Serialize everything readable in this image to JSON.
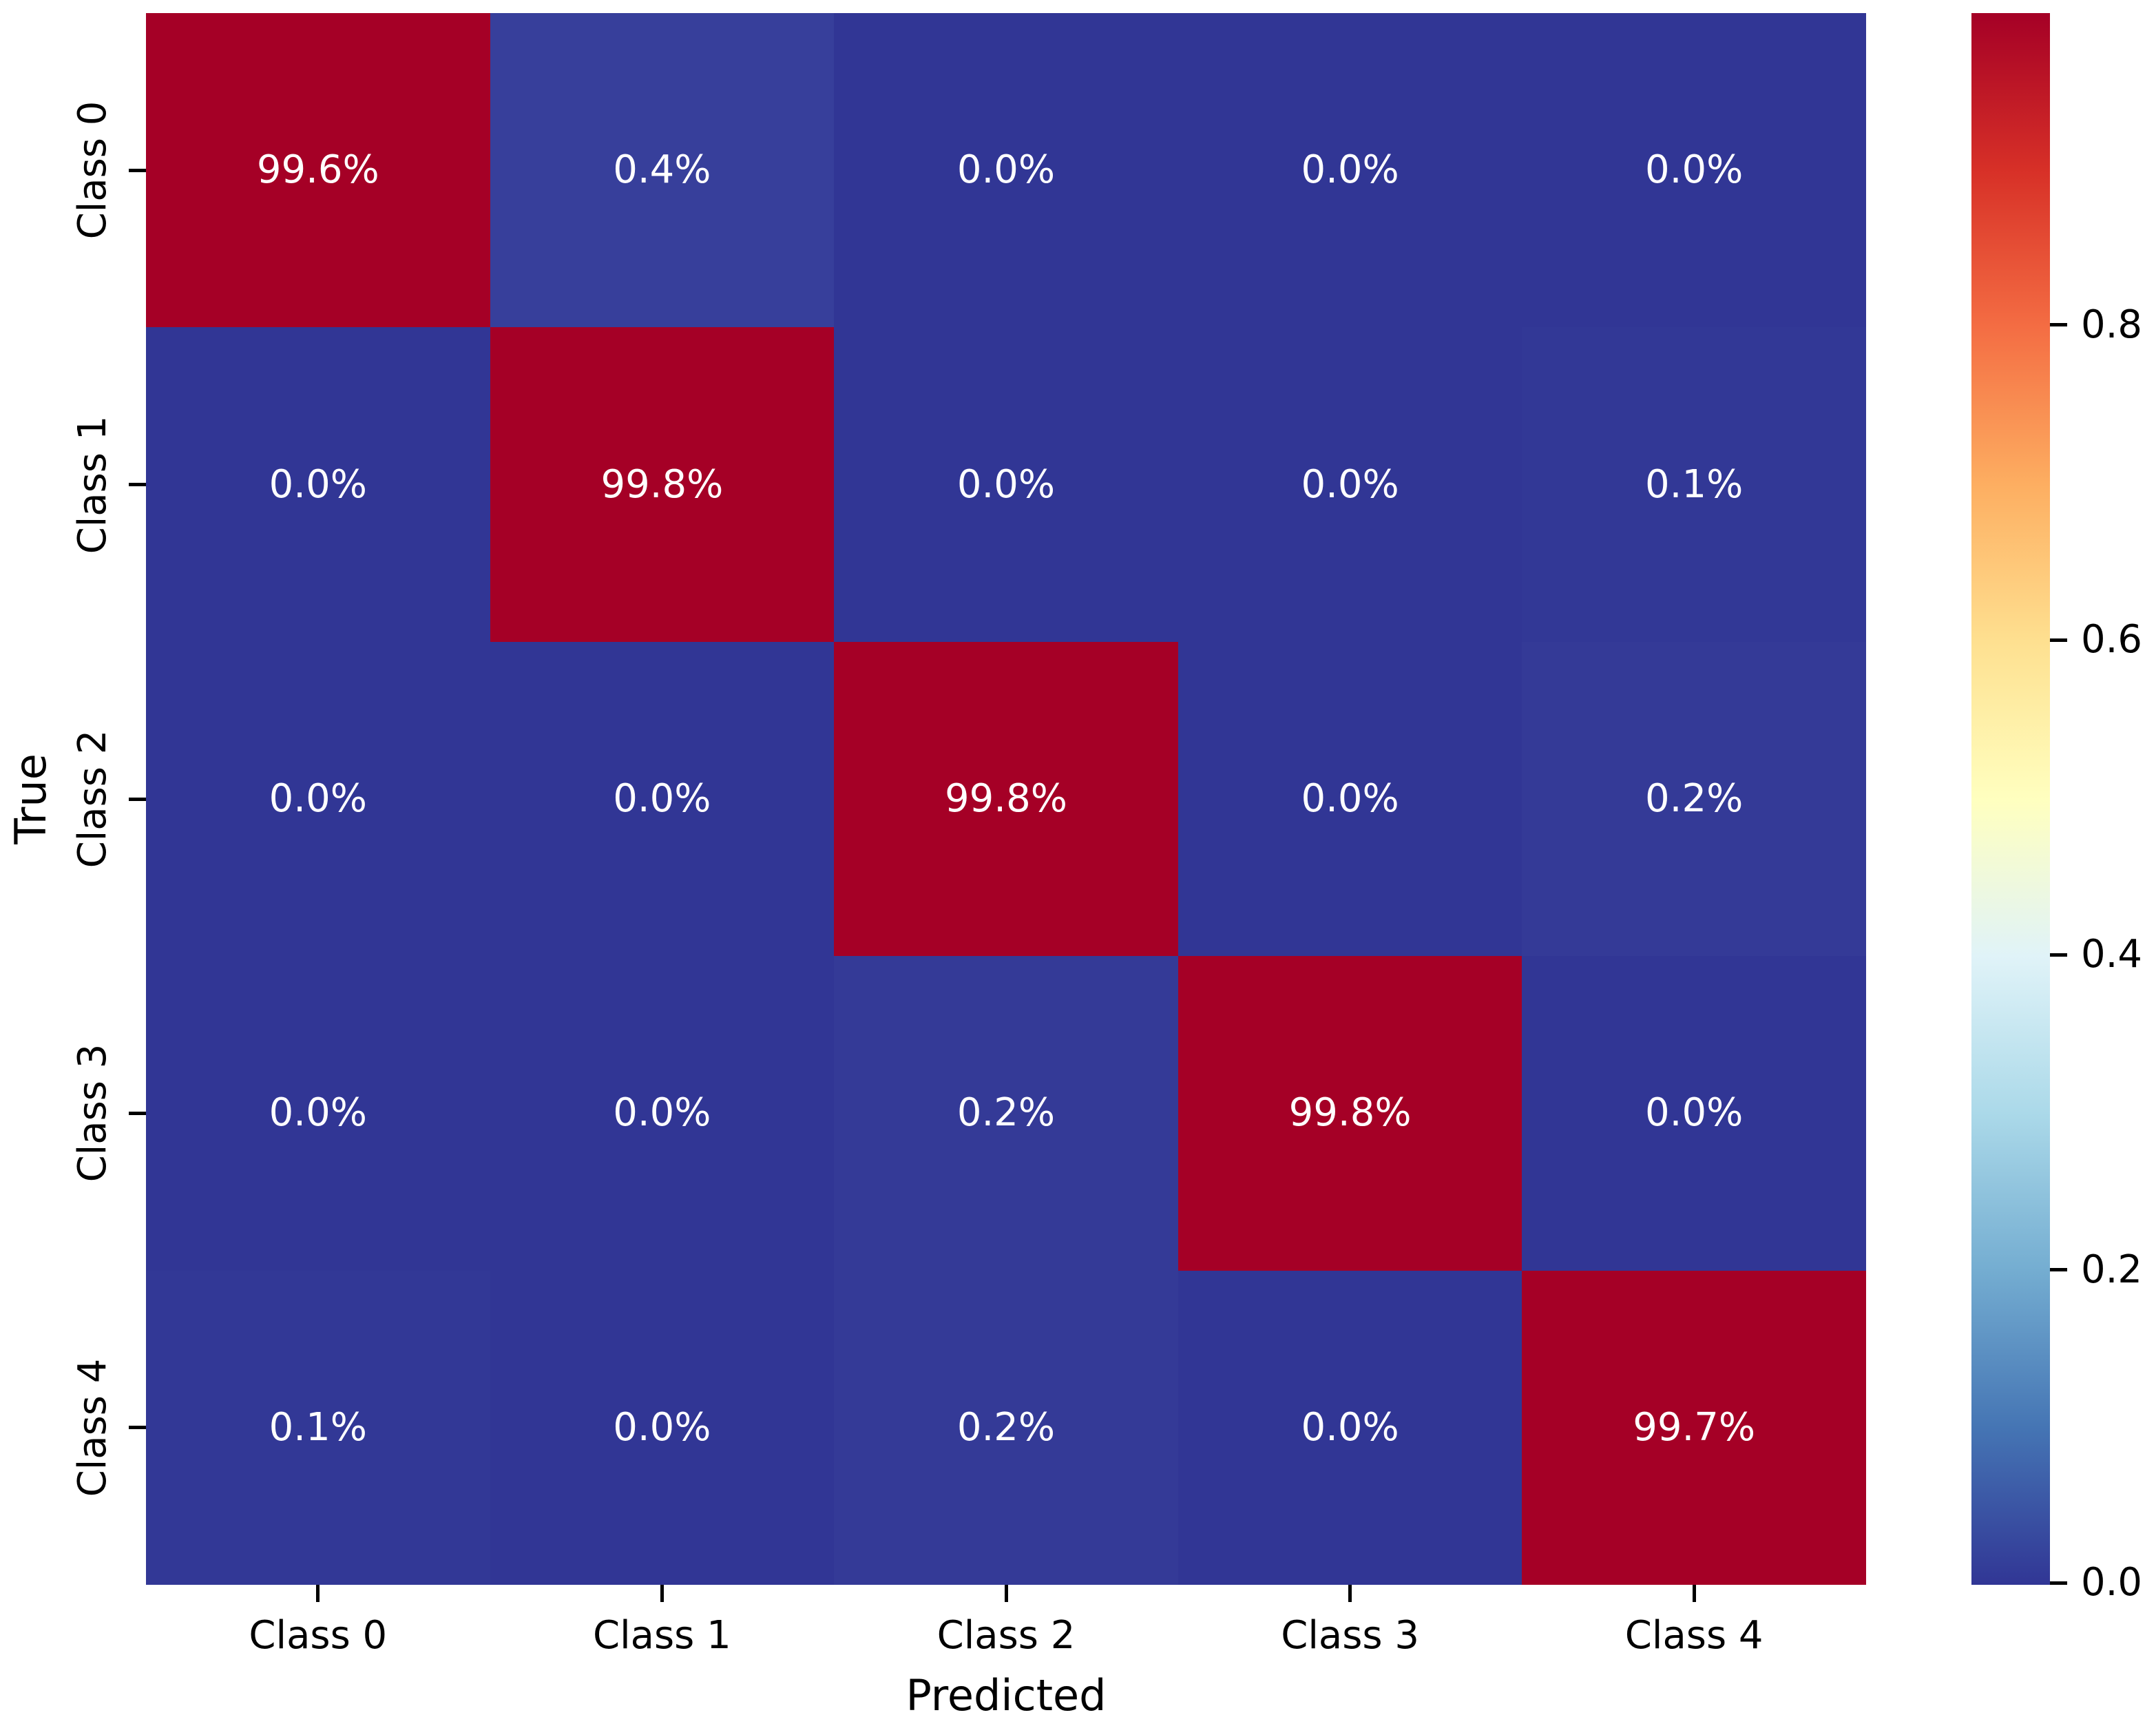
{
  "figure": {
    "background_color": "#ffffff",
    "text_color": "#000000"
  },
  "chart_data": {
    "type": "heatmap",
    "title": "",
    "xlabel": "Predicted",
    "ylabel": "True",
    "x_categories": [
      "Class 0",
      "Class 1",
      "Class 2",
      "Class 3",
      "Class 4"
    ],
    "y_categories": [
      "Class 0",
      "Class 1",
      "Class 2",
      "Class 3",
      "Class 4"
    ],
    "values_percent": [
      [
        99.6,
        0.4,
        0.0,
        0.0,
        0.0
      ],
      [
        0.0,
        99.8,
        0.0,
        0.0,
        0.1
      ],
      [
        0.0,
        0.0,
        99.8,
        0.0,
        0.2
      ],
      [
        0.0,
        0.0,
        0.2,
        99.8,
        0.0
      ],
      [
        0.1,
        0.0,
        0.2,
        0.0,
        99.7
      ]
    ],
    "cell_labels": [
      [
        "99.6%",
        "0.4%",
        "0.0%",
        "0.0%",
        "0.0%"
      ],
      [
        "0.0%",
        "99.8%",
        "0.0%",
        "0.0%",
        "0.1%"
      ],
      [
        "0.0%",
        "0.0%",
        "99.8%",
        "0.0%",
        "0.2%"
      ],
      [
        "0.0%",
        "0.0%",
        "0.2%",
        "99.8%",
        "0.0%"
      ],
      [
        "0.1%",
        "0.0%",
        "0.2%",
        "0.0%",
        "99.7%"
      ]
    ],
    "cell_colors": [
      [
        "#a50026",
        "#373f9b",
        "#313695",
        "#313695",
        "#313695"
      ],
      [
        "#313695",
        "#a50026",
        "#313695",
        "#313695",
        "#323896"
      ],
      [
        "#313695",
        "#313695",
        "#a50026",
        "#313695",
        "#343a97"
      ],
      [
        "#313695",
        "#313695",
        "#343a97",
        "#a50026",
        "#313695"
      ],
      [
        "#323896",
        "#313695",
        "#343a97",
        "#313695",
        "#a50026"
      ]
    ],
    "annotation_text_color": "#ffffff",
    "colormap_name": "RdYlBu_r",
    "grid": false,
    "colorbar": {
      "vmin": 0.0,
      "vmax": 0.998,
      "tick_labels": [
        "0.0",
        "0.2",
        "0.4",
        "0.6",
        "0.8"
      ],
      "tick_values": [
        0.0,
        0.2,
        0.4,
        0.6,
        0.8
      ],
      "gradient_bottom_to_top": [
        "#313695",
        "#4575b4",
        "#74add1",
        "#abd9e9",
        "#e0f3f8",
        "#ffffbf",
        "#fee090",
        "#fdae61",
        "#f46d43",
        "#d73027",
        "#a50026"
      ]
    }
  }
}
